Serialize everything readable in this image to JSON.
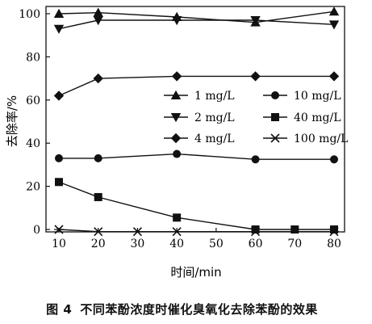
{
  "figure": {
    "caption_number": "图 4",
    "caption_text": "不同苯酚浓度时催化臭氧化去除苯酚的效果"
  },
  "chart_data": {
    "type": "line",
    "xlabel": "时间/min",
    "ylabel": "去除率/%",
    "x_ticks": [
      10,
      20,
      30,
      40,
      50,
      60,
      70,
      80
    ],
    "y_ticks": [
      0,
      20,
      40,
      60,
      80,
      100
    ],
    "xlim": [
      10,
      80
    ],
    "ylim": [
      0,
      100
    ],
    "legend_position": "center-right",
    "series": [
      {
        "name": "1 mg/L",
        "marker": "triangle-up",
        "x": [
          10,
          20,
          40,
          60,
          80
        ],
        "y": [
          100,
          100.5,
          98.5,
          96,
          101
        ]
      },
      {
        "name": "2 mg/L",
        "marker": "triangle-down",
        "x": [
          10,
          20,
          40,
          60,
          80
        ],
        "y": [
          93,
          97,
          97,
          97,
          95
        ]
      },
      {
        "name": "4 mg/L",
        "marker": "diamond",
        "x": [
          10,
          20,
          40,
          60,
          80
        ],
        "y": [
          62,
          70,
          71,
          71,
          71
        ]
      },
      {
        "name": "10 mg/L",
        "marker": "circle",
        "x": [
          10,
          20,
          40,
          60,
          80
        ],
        "y": [
          33,
          33,
          35,
          32.5,
          32.5
        ]
      },
      {
        "name": "40 mg/L",
        "marker": "square",
        "x": [
          10,
          20,
          40,
          60,
          70,
          80
        ],
        "y": [
          22,
          15,
          5.5,
          0,
          0,
          0
        ]
      },
      {
        "name": "100 mg/L",
        "marker": "x",
        "x": [
          10,
          20,
          30,
          40,
          60,
          80
        ],
        "y": [
          0,
          -1,
          -1,
          -1,
          -1,
          -1
        ]
      }
    ],
    "legend_order": [
      "1 mg/L",
      "10 mg/L",
      "2 mg/L",
      "40 mg/L",
      "4 mg/L",
      "100 mg/L"
    ]
  }
}
